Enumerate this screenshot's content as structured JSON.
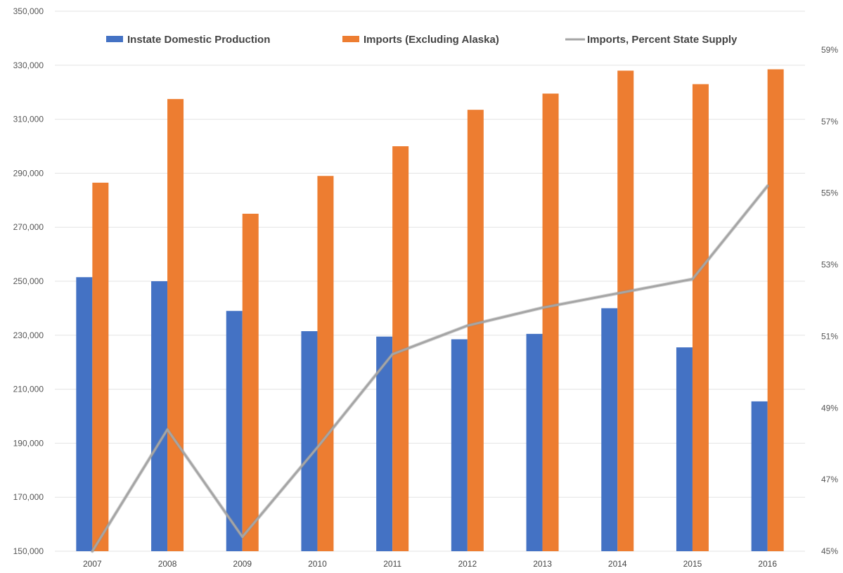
{
  "chart_data": {
    "type": "bar",
    "categories": [
      "2007",
      "2008",
      "2009",
      "2010",
      "2011",
      "2012",
      "2013",
      "2014",
      "2015",
      "2016"
    ],
    "series": [
      {
        "name": "Instate Domestic Production",
        "type": "bar",
        "axis": "left",
        "color": "#4472c4",
        "values": [
          251500,
          250000,
          239000,
          231500,
          229500,
          228500,
          230500,
          240000,
          225500,
          205500
        ]
      },
      {
        "name": "Imports (Excluding Alaska)",
        "type": "bar",
        "axis": "left",
        "color": "#ed7d31",
        "values": [
          286500,
          317500,
          275000,
          289000,
          300000,
          313500,
          319500,
          328000,
          323000,
          328500
        ]
      },
      {
        "name": "Imports, Percent State Supply",
        "type": "line",
        "axis": "right",
        "color": "#a5a5a5",
        "values": [
          44.9,
          48.4,
          45.4,
          47.9,
          50.5,
          51.3,
          51.8,
          52.2,
          52.6,
          55.2
        ]
      }
    ],
    "y_left": {
      "min": 150000,
      "max": 350000,
      "ticks": [
        "150,000",
        "170,000",
        "190,000",
        "210,000",
        "230,000",
        "250,000",
        "270,000",
        "290,000",
        "310,000",
        "330,000",
        "350,000"
      ]
    },
    "y_right": {
      "min": 45,
      "max": 59,
      "ticks": [
        "45%",
        "47%",
        "49%",
        "51%",
        "53%",
        "55%",
        "57%",
        "59%"
      ]
    },
    "grid": true,
    "legend_position": "top"
  }
}
